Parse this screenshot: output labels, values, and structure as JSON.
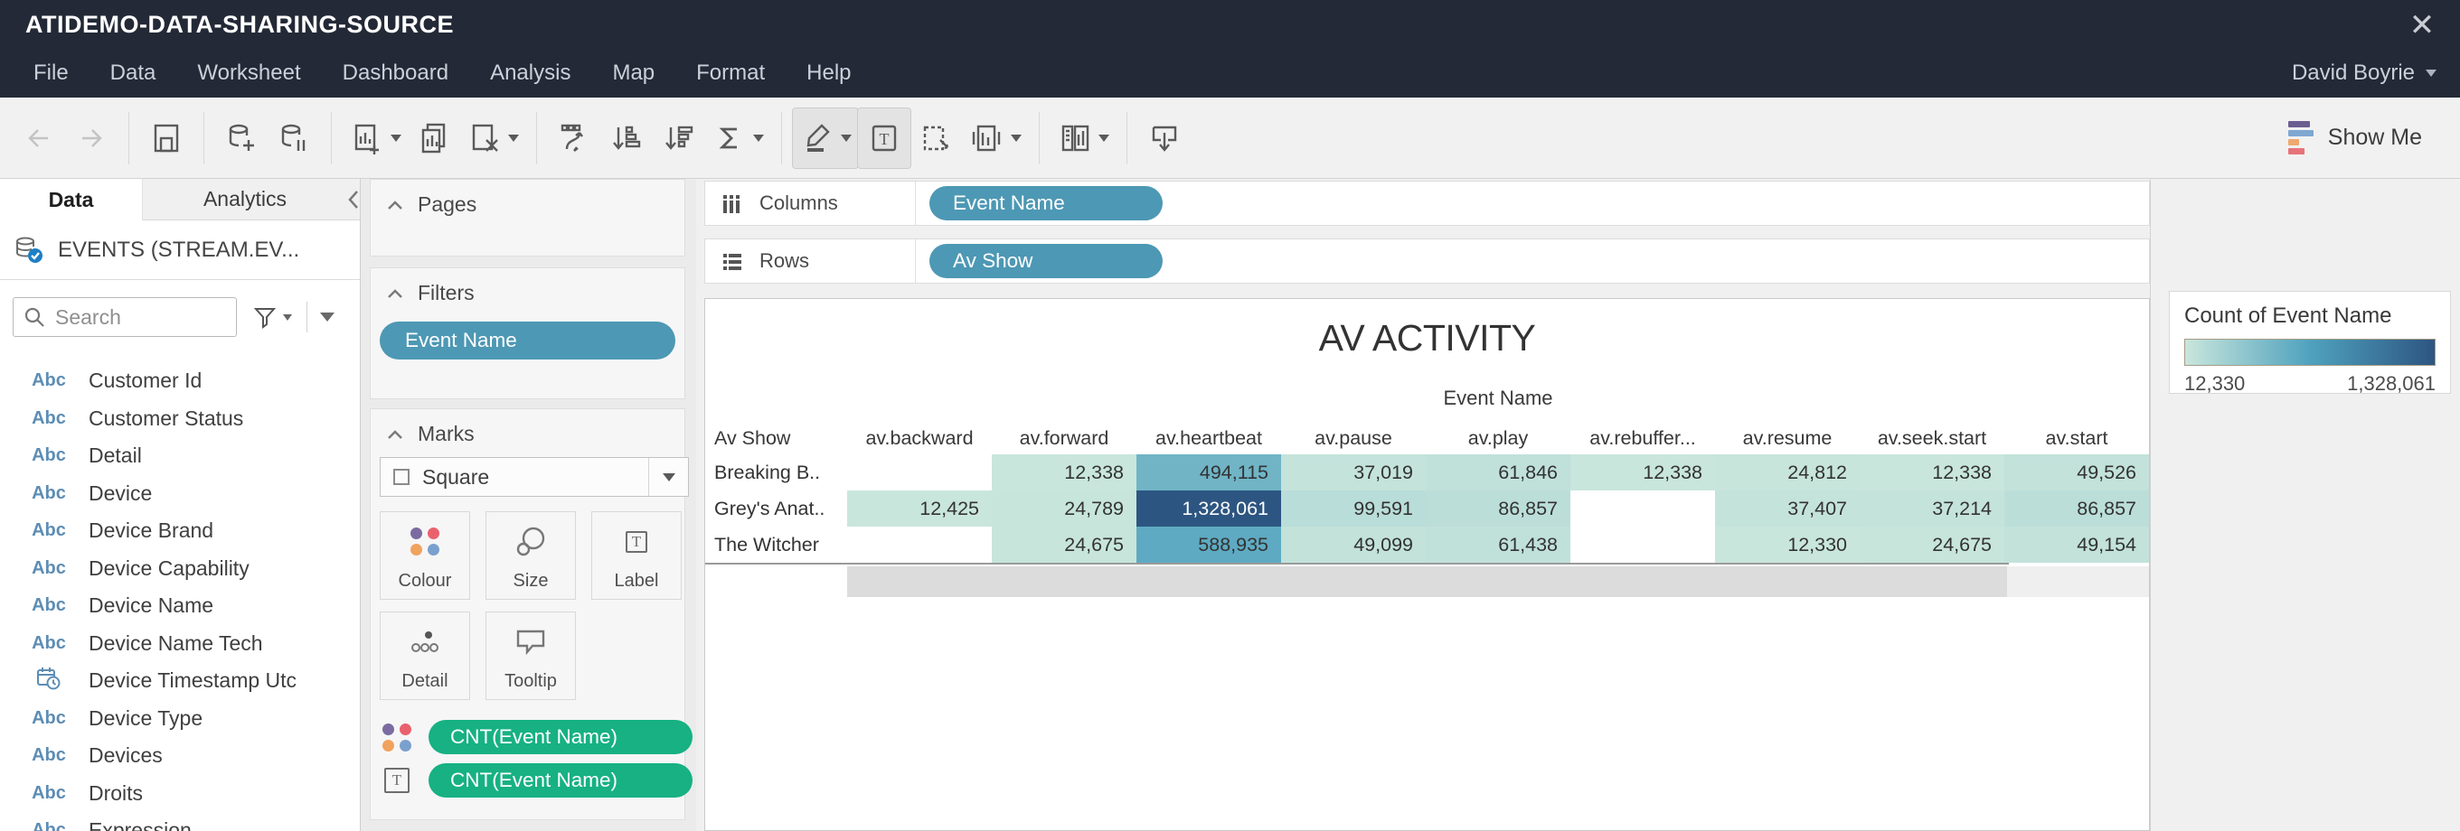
{
  "window": {
    "title": "ATIDEMO-DATA-SHARING-SOURCE"
  },
  "menu": {
    "items": [
      "File",
      "Data",
      "Worksheet",
      "Dashboard",
      "Analysis",
      "Map",
      "Format",
      "Help"
    ],
    "user": "David Boyrie"
  },
  "toolbar": {
    "show_me": "Show Me",
    "icons": [
      "back",
      "forward",
      "save",
      "new-data-source",
      "pause-auto-updates",
      "new-worksheet",
      "duplicate-sheet",
      "clear-sheet",
      "swap-rows-columns",
      "sort-ascending",
      "sort-descending",
      "totals",
      "highlight",
      "show-mark-labels",
      "fix-axes",
      "fit",
      "show-hide-cards",
      "presentation-mode"
    ],
    "show_me_icon_colors": [
      "#6a5f91",
      "#7fa7d1",
      "#efa96f",
      "#e7737a"
    ]
  },
  "left_panel": {
    "tabs": {
      "data": "Data",
      "analytics": "Analytics"
    },
    "datasource": "EVENTS (STREAM.EV...",
    "search_placeholder": "Search",
    "fields": [
      {
        "type": "string",
        "label": "Customer Id"
      },
      {
        "type": "string",
        "label": "Customer Status"
      },
      {
        "type": "string",
        "label": "Detail"
      },
      {
        "type": "string",
        "label": "Device"
      },
      {
        "type": "string",
        "label": "Device Brand"
      },
      {
        "type": "string",
        "label": "Device Capability"
      },
      {
        "type": "string",
        "label": "Device Name"
      },
      {
        "type": "string",
        "label": "Device Name Tech"
      },
      {
        "type": "datetime",
        "label": "Device Timestamp Utc"
      },
      {
        "type": "string",
        "label": "Device Type"
      },
      {
        "type": "string",
        "label": "Devices"
      },
      {
        "type": "string",
        "label": "Droits"
      },
      {
        "type": "string",
        "label": "Expression",
        "partial": true
      }
    ]
  },
  "shelves": {
    "pages_label": "Pages",
    "filters_label": "Filters",
    "filter_pill": "Event Name",
    "marks_label": "Marks",
    "mark_type": "Square",
    "mark_buttons": [
      "Colour",
      "Size",
      "Label",
      "Detail",
      "Tooltip"
    ],
    "mark_pills": [
      {
        "icon": "colour-dots",
        "label": "CNT(Event Name)"
      },
      {
        "icon": "text-label",
        "label": "CNT(Event Name)"
      }
    ],
    "colour_dot_colors": [
      "#7b6ba1",
      "#ea616e",
      "#f0a25f",
      "#7aa0cd"
    ]
  },
  "sheet": {
    "columns_shelf_label": "Columns",
    "rows_shelf_label": "Rows",
    "columns_pill": "Event Name",
    "rows_pill": "Av Show"
  },
  "chart_data": {
    "type": "heatmap",
    "title": "AV ACTIVITY",
    "column_group_label": "Event Name",
    "row_header": "Av Show",
    "columns": [
      "av.backward",
      "av.forward",
      "av.heartbeat",
      "av.pause",
      "av.play",
      "av.rebuffer...",
      "av.resume",
      "av.seek.start",
      "av.start"
    ],
    "rows": [
      "Breaking B..",
      "Grey's Anat..",
      "The Witcher"
    ],
    "values": [
      [
        null,
        12338,
        494115,
        37019,
        61846,
        12338,
        24812,
        12338,
        49526
      ],
      [
        12425,
        24789,
        1328061,
        99591,
        86857,
        null,
        37407,
        37214,
        86857
      ],
      [
        null,
        24675,
        588935,
        49099,
        61438,
        null,
        12330,
        24675,
        49154
      ]
    ],
    "color_scale": {
      "min": 12330,
      "max": 1328061,
      "stops": [
        "#c9e6dc",
        "#4fa2be",
        "#2d5581"
      ],
      "white_text_threshold": 0.62
    }
  },
  "legend": {
    "title": "Count of Event Name",
    "min_label": "12,330",
    "max_label": "1,328,061"
  }
}
